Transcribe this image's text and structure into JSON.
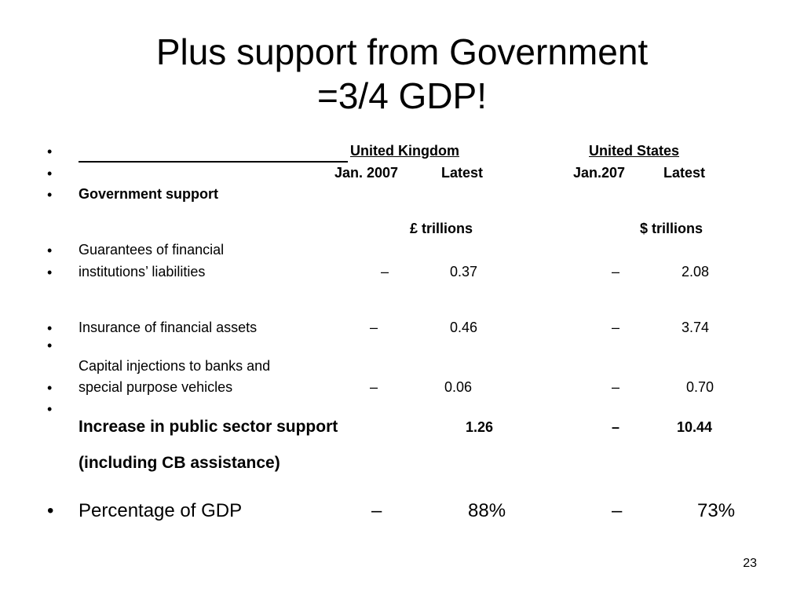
{
  "title": {
    "line1": "Plus support from Government",
    "line2": "=3/4 GDP!"
  },
  "header": {
    "uk": "United Kingdom",
    "us": "United  States",
    "uk_jan": "Jan.  2007",
    "uk_latest": "Latest",
    "us_jan": "Jan.207",
    "us_latest": "Latest"
  },
  "section_label": "Government support",
  "units": {
    "uk": "£ trillions",
    "us": "$  trillions"
  },
  "rows": [
    {
      "label_line1": "Guarantees of financial",
      "label_line2": "institutions’ liabilities",
      "uk_jan": "–",
      "uk_latest": "0.37",
      "us_jan": "–",
      "us_latest": "2.08"
    },
    {
      "label": "Insurance of financial assets",
      "uk_jan": "–",
      "uk_latest": "0.46",
      "us_jan": "–",
      "us_latest": "3.74"
    },
    {
      "label_line1": "Capital injections to banks and",
      "label_line2": "special purpose vehicles",
      "uk_jan": "–",
      "uk_latest": "0.06",
      "us_jan": "–",
      "us_latest": "0.70"
    }
  ],
  "total": {
    "label_line1": "Increase in public sector support",
    "label_line2": "(including CB assistance)",
    "uk_latest": "1.26",
    "us_jan": "–",
    "us_latest": "10.44"
  },
  "percentage": {
    "label": "Percentage of GDP",
    "uk_jan": "–",
    "uk_latest": "88%",
    "us_jan": "–",
    "us_latest": "73%"
  },
  "bullet_char": "•",
  "page_number": "23"
}
